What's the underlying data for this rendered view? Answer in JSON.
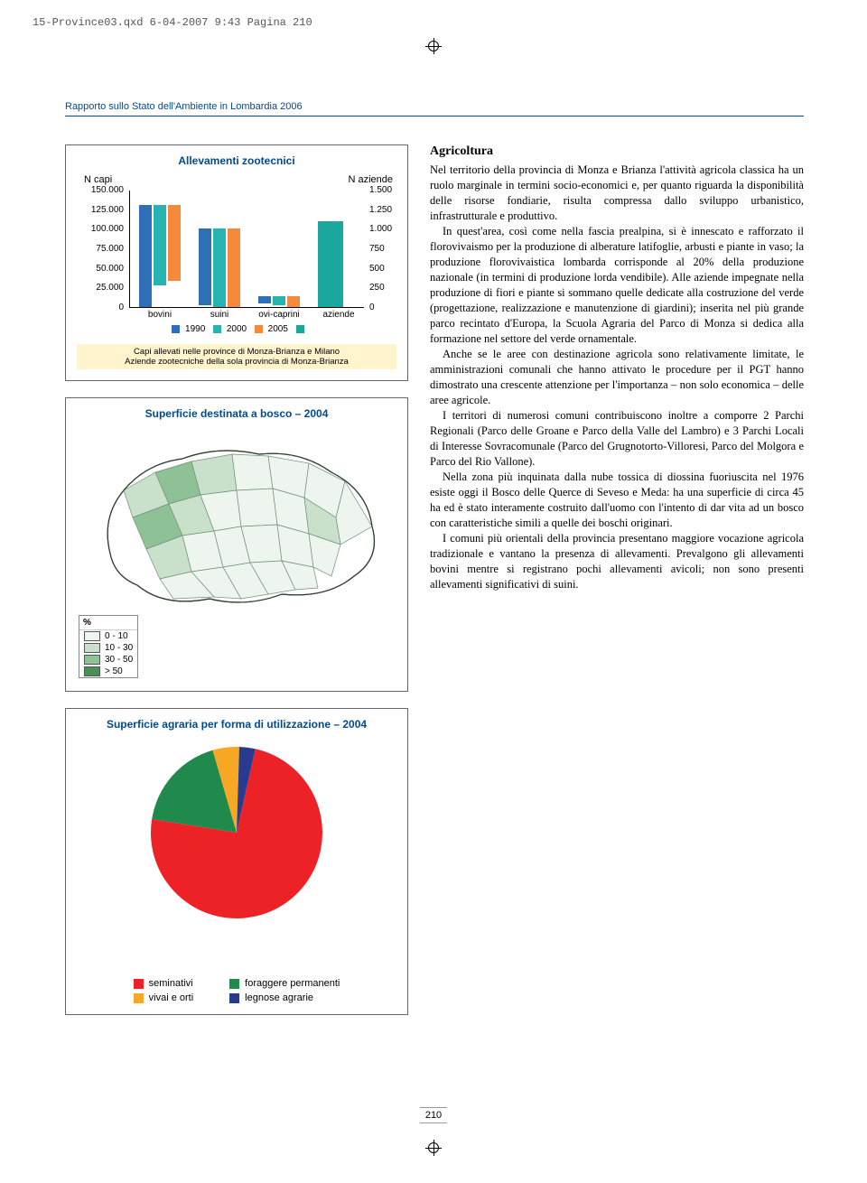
{
  "print_info": "15-Province03.qxd  6-04-2007  9:43  Pagina 210",
  "report_header": "Rapporto sullo Stato dell'Ambiente in Lombardia 2006",
  "page_number": "210",
  "chart1": {
    "type": "bar",
    "title": "Allevamenti zootecnici",
    "left_axis_label": "N capi",
    "right_axis_label": "N aziende",
    "left_ticks": [
      "150.000",
      "125.000",
      "100.000",
      "75.000",
      "50.000",
      "25.000",
      "0"
    ],
    "right_ticks": [
      "1.500",
      "1.250",
      "1.000",
      "750",
      "500",
      "250",
      "0"
    ],
    "categories": [
      "bovini",
      "suini",
      "ovi-caprini",
      "aziende"
    ],
    "series": [
      {
        "name": "1990",
        "color": "#2e6fb7",
        "values": [
          130000,
          98000,
          9000,
          null
        ]
      },
      {
        "name": "2000",
        "color": "#27b4b0",
        "values": [
          102000,
          100000,
          12000,
          null
        ]
      },
      {
        "name": "2005",
        "color": "#f58a3c",
        "values": [
          96000,
          100000,
          14000,
          null
        ]
      }
    ],
    "aziende_value": 1100,
    "aziende_color": "#1aa89e",
    "left_max": 150000,
    "right_max": 1500,
    "note_line1": "Capi allevati nelle province di Monza-Brianza e Milano",
    "note_line2": "Aziende zootecniche della sola provincia di Monza-Brianza",
    "legend_trailer_color": "#1aa89e"
  },
  "chart2": {
    "type": "choropleth-map",
    "title": "Superficie destinata a bosco – 2004",
    "legend_title": "%",
    "legend": [
      {
        "label": "0 - 10",
        "color": "#eef4ee"
      },
      {
        "label": "10 - 30",
        "color": "#c9e0cb"
      },
      {
        "label": "30 - 50",
        "color": "#8fc196"
      },
      {
        "label": "> 50",
        "color": "#4a8e58"
      }
    ],
    "border_color": "#70907a",
    "outline_color": "#304030"
  },
  "chart3": {
    "type": "pie",
    "title": "Superficie agraria per forma di utilizzazione – 2004",
    "slices": [
      {
        "label": "seminativi",
        "color": "#ec2227",
        "value": 74
      },
      {
        "label": "vivai e orti",
        "color": "#f6a724",
        "value": 5
      },
      {
        "label": "foraggere permanenti",
        "color": "#1f8a4c",
        "value": 18
      },
      {
        "label": "legnose agrarie",
        "color": "#283b8f",
        "value": 3
      }
    ],
    "legend_cols": [
      [
        "seminativi",
        "vivai e orti"
      ],
      [
        "foraggere permanenti",
        "legnose agrarie"
      ]
    ]
  },
  "article": {
    "heading": "Agricoltura",
    "paragraphs": [
      "Nel territorio della provincia di Monza e Brianza l'attività agricola classica ha un ruolo marginale in termini socio-economici e, per quanto riguarda la disponibilità delle risorse fondiarie, risulta compressa dallo sviluppo urbanistico, infrastrutturale e produttivo.",
      "In quest'area, così come nella fascia prealpina, si è innescato e rafforzato il florovivaismo per la produzione di alberature latifoglie, arbusti e piante in vaso; la produzione florovivaistica lombarda corrisponde al 20% della produzione nazionale (in termini di produzione lorda vendibile). Alle aziende impegnate nella produzione di fiori e piante si sommano quelle dedicate alla costruzione del verde (progettazione, realizzazione e manutenzione di giardini); inserita nel più grande parco recintato d'Europa, la Scuola Agraria del Parco di Monza si dedica alla formazione nel settore del verde ornamentale.",
      "Anche se le aree con destinazione agricola sono relativamente limitate, le amministrazioni comunali che hanno attivato le procedure per il PGT hanno dimostrato una crescente attenzione per l'importanza – non solo economica – delle aree agricole.",
      "I territori di numerosi comuni contribuiscono inoltre a comporre 2 Parchi Regionali (Parco delle Groane e Parco della Valle del Lambro) e 3 Parchi Locali di Interesse Sovracomunale (Parco del Grugnotorto-Villoresi, Parco del Molgora e Parco del Rio Vallone).",
      "Nella zona più inquinata dalla nube tossica di diossina fuoriuscita nel 1976 esiste oggi il Bosco delle Querce di Seveso e Meda: ha una superficie di circa 45 ha ed è stato interamente costruito dall'uomo con l'intento di dar vita ad un bosco con caratteristiche simili a quelle dei boschi originari.",
      "I comuni più orientali della provincia presentano maggiore vocazione agricola tradizionale e vantano la presenza di allevamenti. Prevalgono gli allevamenti bovini mentre si registrano pochi allevamenti avicoli; non sono presenti allevamenti significativi di suini."
    ]
  }
}
